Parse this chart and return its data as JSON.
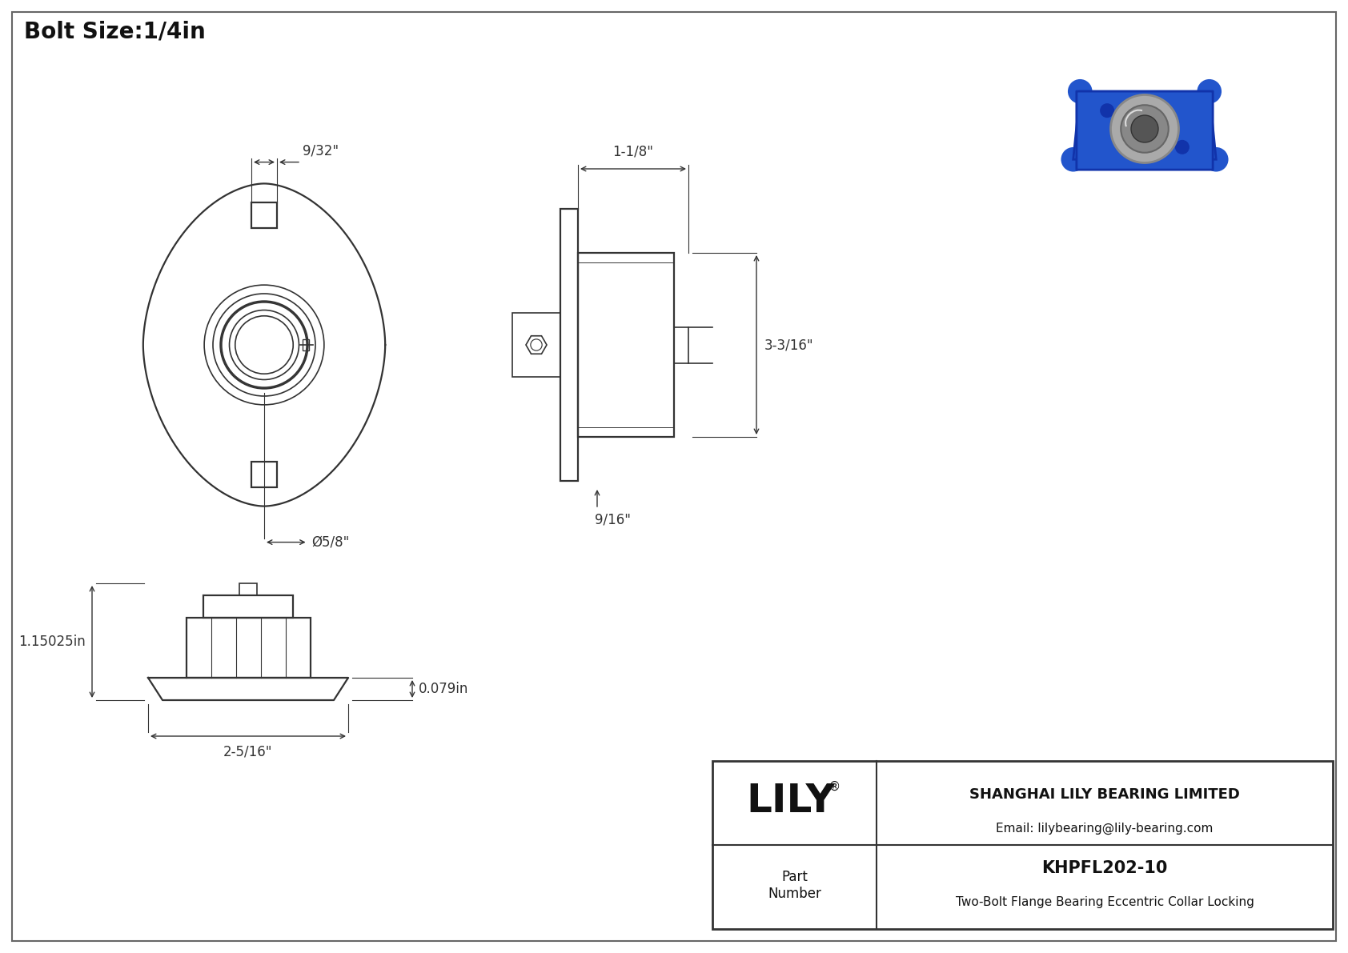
{
  "title": "Bolt Size:1/4in",
  "bg_color": "#ffffff",
  "line_color": "#333333",
  "dim_color": "#333333",
  "company": "SHANGHAI LILY BEARING LIMITED",
  "email": "Email: lilybearing@lily-bearing.com",
  "part_number": "KHPFL202-10",
  "part_desc": "Two-Bolt Flange Bearing Eccentric Collar Locking",
  "dim_bolt_width": "9/32\"",
  "dim_bore": "Ø5/8\"",
  "dim_side_width": "1-1/8\"",
  "dim_side_height": "3-3/16\"",
  "dim_side_bottom": "9/16\"",
  "dim_front_height": "1.15025in",
  "dim_front_width": "2-5/16\"",
  "dim_front_lip": "0.079in"
}
